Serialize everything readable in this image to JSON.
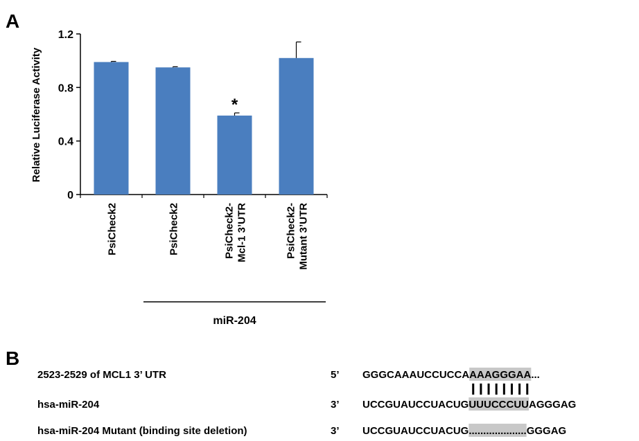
{
  "panels": {
    "a_label": "A",
    "b_label": "B"
  },
  "chart_data": {
    "type": "bar",
    "categories": [
      [
        "PsiCheck2"
      ],
      [
        "PsiCheck2"
      ],
      [
        "PsiCheck2-",
        "Mcl-1 3’UTR"
      ],
      [
        "PsiCheck2-",
        "Mutant  3’UTR"
      ]
    ],
    "values": [
      0.99,
      0.95,
      0.59,
      1.02
    ],
    "errors": [
      0.005,
      0.005,
      0.02,
      0.12
    ],
    "annotations": [
      "",
      "",
      "*",
      ""
    ],
    "ylabel": "Relative Luciferase Activity",
    "ylim": [
      0,
      1.2
    ],
    "yticks": [
      "0",
      "0.4",
      "0.8",
      "1.2"
    ],
    "grid": false,
    "bar_color": "#4a7ebf",
    "group_label": "miR-204",
    "group_span": [
      1,
      3
    ]
  },
  "sequences": {
    "rows": [
      {
        "name": "2523-2529 of MCL1 3’ UTR",
        "end": "5’",
        "pre": "GGGCAAAUCCUCCA",
        "site": "AAAGGGAA",
        "post": "..."
      },
      {
        "name": "hsa-miR-204",
        "end": "3’",
        "pre": "UCCGUAUCCUACUG",
        "site": "UUUCCCUU",
        "post": "AGGGAG"
      },
      {
        "name": "hsa-miR-204 Mutant (binding site deletion)",
        "end": "3’",
        "pre": "UCCGUAUCCUACUG",
        "site": "....................",
        "post": "GGGAG"
      }
    ],
    "pair_count": 8,
    "highlight_color": "#c8c8c8"
  }
}
